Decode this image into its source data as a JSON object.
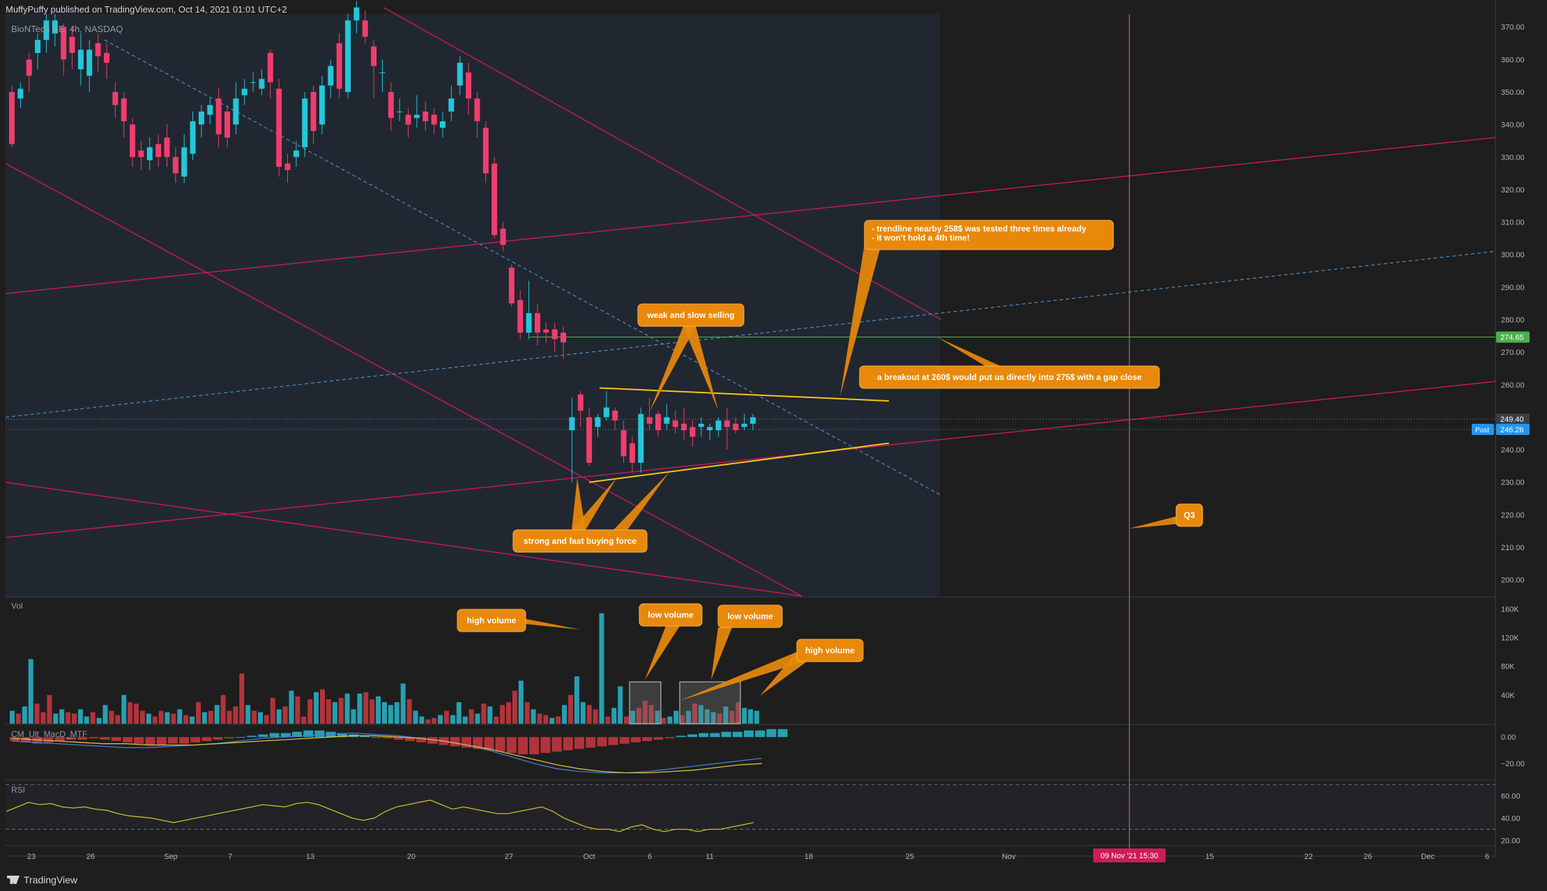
{
  "header": {
    "published": "MuffyPuffy published on TradingView.com, Oct 14, 2021 01:01 UTC+2",
    "symbol": "BioNTech SE, 4h, NASDAQ"
  },
  "panels": {
    "volume_label": "Vol",
    "macd_label": "CM_Ult_MacD_MTF",
    "rsi_label": "RSI"
  },
  "brand": "TradingView",
  "colors": {
    "bg": "#1e1e1e",
    "up": "#26c6da",
    "down": "#ef3e6e",
    "vol_up": "#26a0b2",
    "vol_down": "#b2333b",
    "annotation": "#e8890c",
    "yellow_line": "#f5c518",
    "pink_line": "#c2185b",
    "green_level": "#4caf50",
    "blue_dash": "#4a90c8"
  },
  "chart_data": {
    "type": "candlestick",
    "price_ticks": [
      "370.00",
      "360.00",
      "350.00",
      "340.00",
      "330.00",
      "320.00",
      "310.00",
      "300.00",
      "290.00",
      "280.00",
      "270.00",
      "260.00",
      "250.00",
      "240.00",
      "230.00",
      "220.00",
      "210.00",
      "200.00"
    ],
    "price_range": [
      195,
      374
    ],
    "volume_ticks": [
      "160K",
      "120K",
      "80K",
      "40K"
    ],
    "volume_range": [
      0,
      175
    ],
    "macd_ticks": [
      "0.00",
      "−20.00"
    ],
    "rsi_ticks": [
      "60.00",
      "40.00",
      "20.00"
    ],
    "x_ticks": [
      "23",
      "26",
      "Sep",
      "7",
      "13",
      "20",
      "27",
      "Oct",
      "6",
      "11",
      "18",
      "25",
      "Nov",
      "15",
      "22",
      "26",
      "Dec",
      "6"
    ],
    "price_labels": [
      {
        "text": "274.65",
        "value": 274.65,
        "color": "#4caf50"
      },
      {
        "text": "249.40",
        "value": 249.4,
        "color": "#3a3e47"
      },
      {
        "text": "246.26",
        "value": 246.26,
        "color": "#2196f3",
        "prefix": "Post"
      }
    ],
    "crosshair_date": "09 Nov '21   15:30",
    "candles": [
      [
        350,
        334,
        352,
        333
      ],
      [
        348,
        351,
        353,
        345
      ],
      [
        360,
        355,
        362,
        350
      ],
      [
        362,
        366,
        368,
        357
      ],
      [
        366,
        372,
        374,
        362
      ],
      [
        368,
        372,
        374,
        364
      ],
      [
        370,
        360,
        371,
        355
      ],
      [
        367,
        362,
        370,
        357
      ],
      [
        357,
        363,
        368,
        352
      ],
      [
        355,
        363,
        366,
        350
      ],
      [
        365,
        361,
        368,
        356
      ],
      [
        362,
        359,
        365,
        354
      ],
      [
        350,
        346,
        353,
        342
      ],
      [
        348,
        341,
        350,
        336
      ],
      [
        340,
        330,
        342,
        327
      ],
      [
        332,
        330,
        335,
        326
      ],
      [
        329,
        333,
        336,
        326
      ],
      [
        334,
        330,
        337,
        327
      ],
      [
        336,
        330,
        340,
        327
      ],
      [
        330,
        325,
        333,
        322
      ],
      [
        324,
        333,
        337,
        322
      ],
      [
        331,
        341,
        344,
        329
      ],
      [
        340,
        344,
        346,
        336
      ],
      [
        343,
        346,
        348,
        340
      ],
      [
        348,
        337,
        351,
        333
      ],
      [
        344,
        336,
        346,
        333
      ],
      [
        340,
        348,
        353,
        337
      ],
      [
        349,
        351,
        354,
        346
      ],
      [
        353,
        353,
        356,
        350
      ],
      [
        351,
        354,
        357,
        349
      ],
      [
        362,
        353,
        363,
        348
      ],
      [
        351,
        327,
        354,
        324
      ],
      [
        328,
        326,
        331,
        322
      ],
      [
        330,
        332,
        335,
        327
      ],
      [
        333,
        348,
        350,
        330
      ],
      [
        350,
        338,
        352,
        334
      ],
      [
        340,
        352,
        355,
        337
      ],
      [
        352,
        358,
        360,
        348
      ],
      [
        365,
        351,
        368,
        348
      ],
      [
        350,
        372,
        374,
        348
      ],
      [
        372,
        376,
        378,
        368
      ],
      [
        372,
        367,
        375,
        365
      ],
      [
        364,
        358,
        366,
        348
      ],
      [
        356,
        356,
        360,
        350
      ],
      [
        350,
        342,
        353,
        338
      ],
      [
        344,
        344,
        348,
        341
      ],
      [
        343,
        340,
        345,
        336
      ],
      [
        342,
        343,
        349,
        339
      ],
      [
        344,
        341,
        347,
        338
      ],
      [
        343,
        340,
        345,
        337
      ],
      [
        339,
        341,
        344,
        336
      ],
      [
        344,
        348,
        352,
        341
      ],
      [
        352,
        359,
        361,
        349
      ],
      [
        356,
        348,
        359,
        343
      ],
      [
        348,
        341,
        350,
        336
      ],
      [
        339,
        325,
        341,
        322
      ],
      [
        328,
        306,
        330,
        305
      ],
      [
        308,
        303,
        310,
        301
      ],
      [
        296,
        285,
        297,
        284
      ],
      [
        286,
        276,
        289,
        274
      ],
      [
        276,
        282,
        292,
        274
      ],
      [
        282,
        276,
        285,
        272
      ],
      [
        277,
        276,
        279,
        273
      ],
      [
        277,
        274,
        279,
        270
      ],
      [
        276,
        273,
        278,
        268
      ],
      [
        246,
        250,
        256,
        230
      ],
      [
        257,
        252,
        258,
        247
      ],
      [
        250,
        236,
        253,
        235
      ],
      [
        247,
        250,
        251,
        244
      ],
      [
        250,
        253,
        258,
        249
      ],
      [
        252,
        249,
        253,
        246
      ],
      [
        246,
        238,
        249,
        236
      ],
      [
        242,
        236,
        244,
        233
      ],
      [
        236,
        251,
        253,
        233
      ],
      [
        250,
        248,
        256,
        246
      ],
      [
        251,
        246,
        252,
        244
      ],
      [
        248,
        250,
        254,
        246
      ],
      [
        249,
        247,
        252,
        245
      ],
      [
        248,
        246,
        253,
        243
      ],
      [
        247,
        244,
        249,
        241
      ],
      [
        247,
        248,
        250,
        244
      ],
      [
        246,
        247,
        248,
        243
      ],
      [
        246,
        249,
        250,
        244
      ],
      [
        249,
        247,
        253,
        240
      ],
      [
        248,
        246,
        250,
        245
      ],
      [
        247,
        248,
        251,
        246
      ],
      [
        248,
        250,
        251,
        246
      ]
    ],
    "volume": [
      [
        18,
        1
      ],
      [
        14,
        0
      ],
      [
        24,
        1
      ],
      [
        90,
        1
      ],
      [
        28,
        0
      ],
      [
        16,
        0
      ],
      [
        40,
        0
      ],
      [
        14,
        1
      ],
      [
        20,
        1
      ],
      [
        16,
        0
      ],
      [
        14,
        0
      ],
      [
        20,
        1
      ],
      [
        10,
        1
      ],
      [
        16,
        0
      ],
      [
        8,
        1
      ],
      [
        26,
        1
      ],
      [
        18,
        0
      ],
      [
        12,
        0
      ],
      [
        40,
        1
      ],
      [
        30,
        0
      ],
      [
        28,
        0
      ],
      [
        18,
        0
      ],
      [
        14,
        1
      ],
      [
        10,
        0
      ],
      [
        18,
        0
      ],
      [
        16,
        1
      ],
      [
        14,
        0
      ],
      [
        20,
        1
      ],
      [
        12,
        0
      ],
      [
        10,
        1
      ],
      [
        30,
        0
      ],
      [
        16,
        1
      ],
      [
        18,
        0
      ],
      [
        26,
        1
      ],
      [
        40,
        0
      ],
      [
        18,
        0
      ],
      [
        24,
        0
      ],
      [
        70,
        0
      ],
      [
        26,
        1
      ],
      [
        18,
        0
      ],
      [
        16,
        1
      ],
      [
        12,
        0
      ],
      [
        36,
        0
      ],
      [
        20,
        1
      ],
      [
        24,
        0
      ],
      [
        46,
        1
      ],
      [
        38,
        0
      ],
      [
        10,
        0
      ],
      [
        34,
        0
      ],
      [
        44,
        1
      ],
      [
        48,
        0
      ],
      [
        34,
        0
      ],
      [
        30,
        1
      ],
      [
        36,
        0
      ],
      [
        42,
        1
      ],
      [
        20,
        1
      ],
      [
        42,
        1
      ],
      [
        44,
        0
      ],
      [
        34,
        0
      ],
      [
        38,
        1
      ],
      [
        30,
        1
      ],
      [
        26,
        1
      ],
      [
        30,
        1
      ],
      [
        56,
        1
      ],
      [
        34,
        0
      ],
      [
        18,
        1
      ],
      [
        10,
        1
      ],
      [
        6,
        0
      ],
      [
        8,
        0
      ],
      [
        12,
        1
      ],
      [
        18,
        0
      ],
      [
        12,
        1
      ],
      [
        30,
        1
      ],
      [
        10,
        1
      ],
      [
        20,
        0
      ],
      [
        14,
        1
      ],
      [
        28,
        0
      ],
      [
        24,
        1
      ],
      [
        10,
        0
      ],
      [
        26,
        0
      ],
      [
        30,
        0
      ],
      [
        46,
        0
      ],
      [
        60,
        1
      ],
      [
        30,
        0
      ],
      [
        20,
        1
      ],
      [
        14,
        0
      ],
      [
        12,
        0
      ],
      [
        8,
        1
      ],
      [
        10,
        0
      ],
      [
        26,
        1
      ],
      [
        40,
        0
      ],
      [
        66,
        1
      ],
      [
        30,
        1
      ],
      [
        26,
        0
      ],
      [
        20,
        0
      ],
      [
        154,
        1
      ],
      [
        10,
        0
      ],
      [
        22,
        1
      ],
      [
        52,
        1
      ],
      [
        10,
        0
      ],
      [
        18,
        1
      ],
      [
        22,
        0
      ],
      [
        32,
        0
      ],
      [
        26,
        0
      ],
      [
        18,
        1
      ],
      [
        8,
        0
      ],
      [
        10,
        1
      ],
      [
        18,
        1
      ],
      [
        12,
        0
      ],
      [
        18,
        1
      ],
      [
        28,
        0
      ],
      [
        26,
        1
      ],
      [
        20,
        1
      ],
      [
        16,
        1
      ],
      [
        14,
        0
      ],
      [
        24,
        1
      ],
      [
        18,
        0
      ],
      [
        30,
        0
      ],
      [
        22,
        1
      ],
      [
        20,
        1
      ],
      [
        18,
        1
      ]
    ],
    "macd_hist": [
      -3,
      -4,
      -5,
      -4,
      -3,
      -2,
      -2,
      -1,
      -2,
      -3,
      -4,
      -5,
      -6,
      -6,
      -5,
      -5,
      -4,
      -3,
      -2,
      -1,
      0,
      1,
      2,
      3,
      3,
      4,
      5,
      5,
      4,
      3,
      2,
      1,
      0,
      -1,
      -2,
      -3,
      -4,
      -5,
      -6,
      -7,
      -8,
      -9,
      -10,
      -11,
      -12,
      -13,
      -13,
      -12,
      -11,
      -10,
      -9,
      -8,
      -7,
      -6,
      -5,
      -4,
      -3,
      -2,
      -1,
      1,
      2,
      3,
      3,
      4,
      4,
      5,
      5,
      6,
      6
    ],
    "macd_line": [
      -3,
      -4,
      -5,
      -6,
      -7,
      -8,
      -8,
      -7,
      -6,
      -5,
      -3,
      -1,
      0,
      1,
      2,
      3,
      2,
      1,
      -1,
      -3,
      -6,
      -10,
      -15,
      -20,
      -24,
      -26,
      -27,
      -27,
      -26,
      -24,
      -22,
      -20,
      -18,
      -16
    ],
    "signal_line": [
      -1,
      -2,
      -3,
      -4,
      -5,
      -5,
      -6,
      -6,
      -6,
      -5,
      -4,
      -3,
      -2,
      -1,
      0,
      1,
      1,
      0,
      -1,
      -3,
      -6,
      -9,
      -13,
      -17,
      -21,
      -24,
      -26,
      -27,
      -27,
      -26,
      -25,
      -23,
      -21,
      -20
    ],
    "rsi": [
      46,
      50,
      54,
      52,
      53,
      50,
      49,
      50,
      48,
      47,
      44,
      42,
      41,
      40,
      38,
      36,
      38,
      40,
      42,
      44,
      46,
      48,
      50,
      52,
      51,
      50,
      53,
      54,
      52,
      48,
      44,
      40,
      38,
      40,
      46,
      50,
      52,
      54,
      56,
      52,
      48,
      50,
      48,
      46,
      44,
      44,
      46,
      48,
      50,
      46,
      40,
      36,
      32,
      30,
      30,
      28,
      32,
      34,
      30,
      28,
      30,
      30,
      28,
      30,
      30,
      32,
      34,
      36
    ]
  },
  "annotations": {
    "trendline": "- trendline nearby 258$ was tested three times already\n- it won't hold a 4th time!",
    "weak": "weak and slow selling",
    "breakout": "a breakout at 260$ would put us directly into 275$ with a gap close",
    "strong": "strong and fast buying force",
    "q3": "Q3",
    "vol_high_1": "high volume",
    "vol_low_1": "low volume",
    "vol_low_2": "low volume",
    "vol_high_2": "high volume"
  }
}
